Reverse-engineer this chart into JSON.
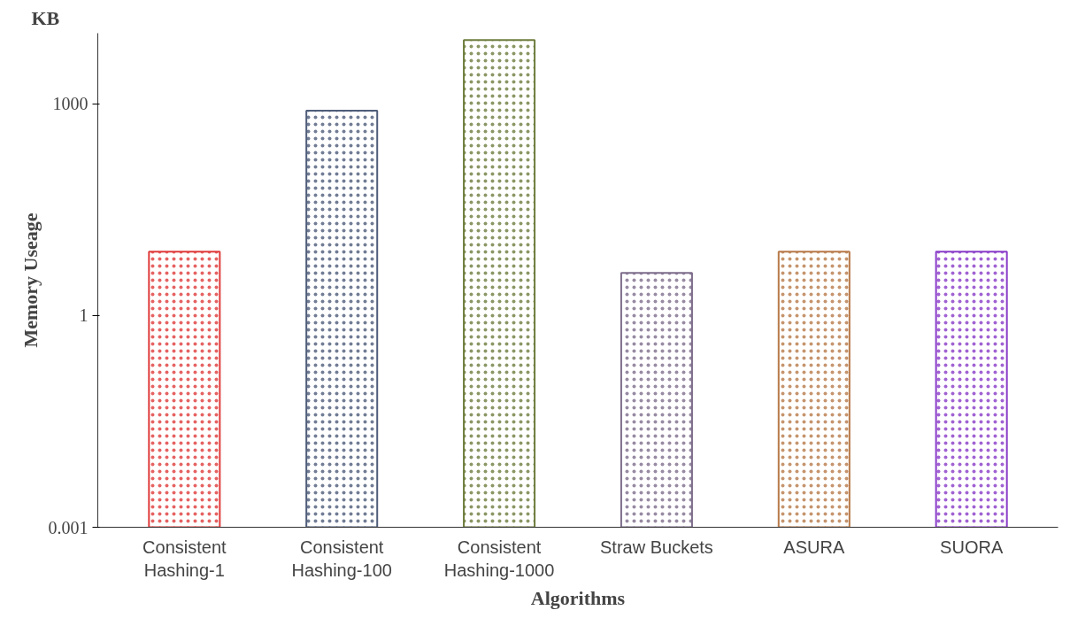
{
  "chart_data": {
    "type": "bar",
    "xlabel": "Algorithms",
    "ylabel": "Memory Useage",
    "annotations": [
      "KB"
    ],
    "categories": [
      "Consistent\nHashing-1",
      "Consistent\nHashing-100",
      "Consistent\nHashing-1000",
      "Straw Buckets",
      "ASURA",
      "SUORA"
    ],
    "values": [
      8,
      800,
      8000,
      4,
      8,
      8
    ],
    "colors": [
      "#e03c3c",
      "#4f5d7a",
      "#6e7d3e",
      "#7e6e8c",
      "#b87a4a",
      "#8a3cc8"
    ],
    "log": "y",
    "ylim": [
      0.001,
      10000
    ],
    "yticks": [
      0.001,
      1,
      1000
    ],
    "grid": false
  }
}
